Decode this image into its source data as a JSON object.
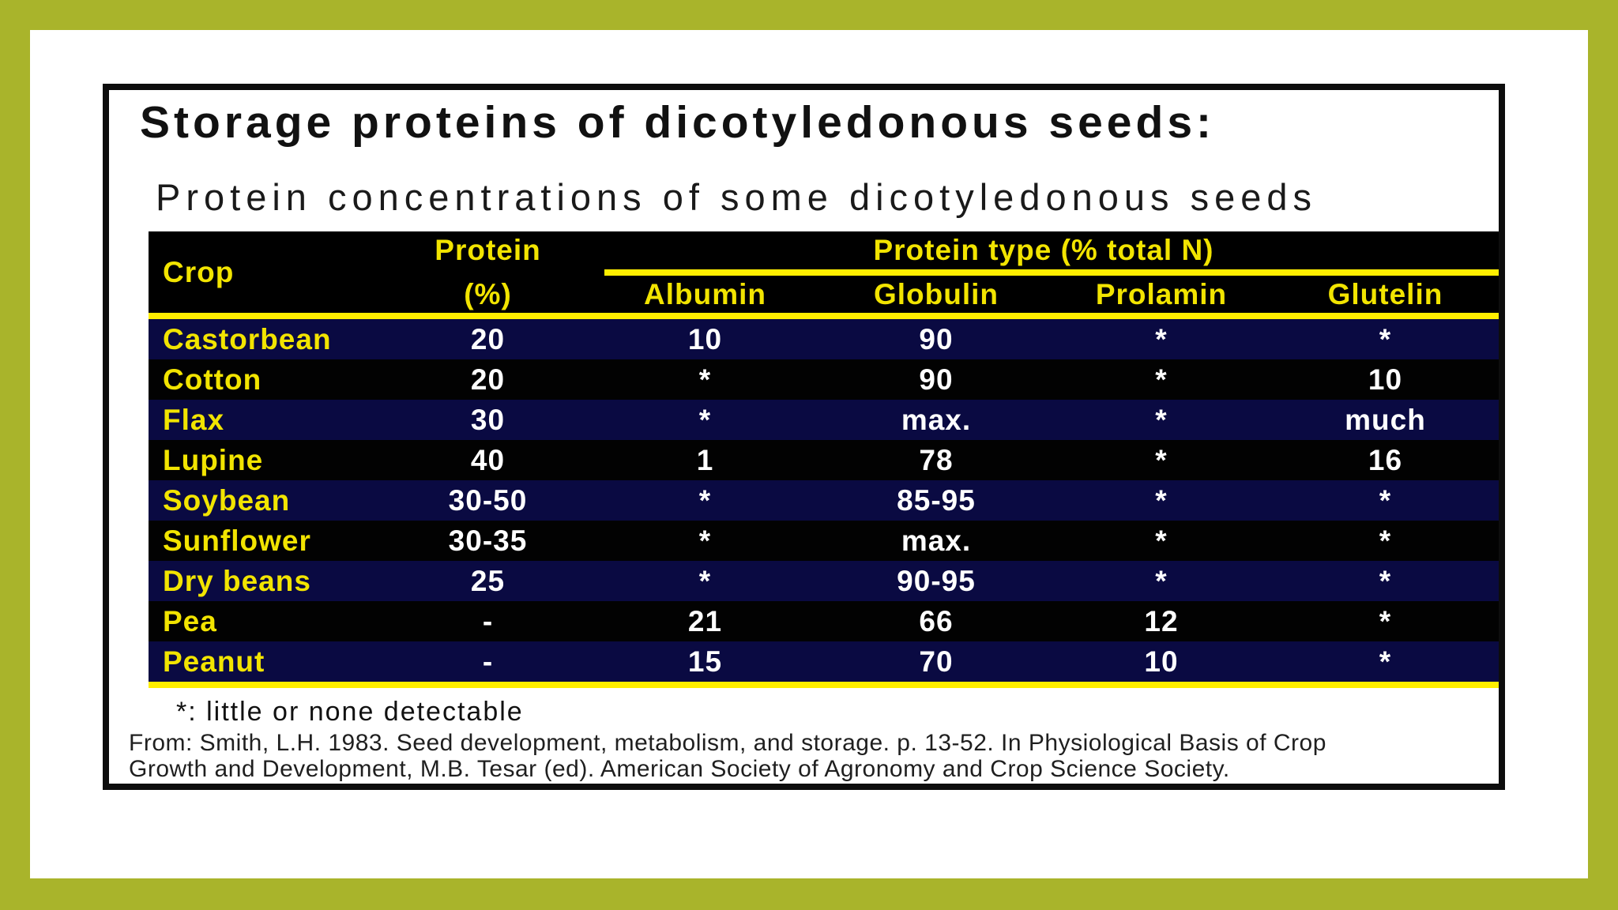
{
  "slide": {
    "title": "Storage proteins of dicotyledonous seeds:",
    "subtitle": "Protein concentrations of some dicotyledonous seeds",
    "footnote": "*: little or none detectable",
    "citation_line1": "From: Smith, L.H. 1983. Seed development, metabolism, and storage. p. 13-52. In Physiological Basis of Crop",
    "citation_line2": "Growth and Development, M.B. Tesar (ed). American Society of Agronomy and Crop Science Society."
  },
  "table": {
    "header": {
      "crop": "Crop",
      "protein_line1": "Protein",
      "protein_line2": "(%)",
      "protein_type_group": "Protein type (% total N)",
      "subcolumns": [
        "Albumin",
        "Globulin",
        "Prolamin",
        "Glutelin"
      ]
    },
    "rows": [
      {
        "crop": "Castorbean",
        "protein": "20",
        "albumin": "10",
        "globulin": "90",
        "prolamin": "*",
        "glutelin": "*"
      },
      {
        "crop": "Cotton",
        "protein": "20",
        "albumin": "*",
        "globulin": "90",
        "prolamin": "*",
        "glutelin": "10"
      },
      {
        "crop": "Flax",
        "protein": "30",
        "albumin": "*",
        "globulin": "max.",
        "prolamin": "*",
        "glutelin": "much"
      },
      {
        "crop": "Lupine",
        "protein": "40",
        "albumin": "1",
        "globulin": "78",
        "prolamin": "*",
        "glutelin": "16"
      },
      {
        "crop": "Soybean",
        "protein": "30-50",
        "albumin": "*",
        "globulin": "85-95",
        "prolamin": "*",
        "glutelin": "*"
      },
      {
        "crop": "Sunflower",
        "protein": "30-35",
        "albumin": "*",
        "globulin": "max.",
        "prolamin": "*",
        "glutelin": "*"
      },
      {
        "crop": "Dry beans",
        "protein": "25",
        "albumin": "*",
        "globulin": "90-95",
        "prolamin": "*",
        "glutelin": "*"
      },
      {
        "crop": "Pea",
        "protein": "-",
        "albumin": "21",
        "globulin": "66",
        "prolamin": "12",
        "glutelin": "*"
      },
      {
        "crop": "Peanut",
        "protein": "-",
        "albumin": "15",
        "globulin": "70",
        "prolamin": "10",
        "glutelin": "*"
      }
    ]
  },
  "colors": {
    "border_green": "#a9b42b",
    "table_yellow": "#ffee00",
    "header_text_yellow": "#f2e400",
    "row_navy": "#0a0a42",
    "row_black": "#020202",
    "value_white": "#ffffff"
  }
}
